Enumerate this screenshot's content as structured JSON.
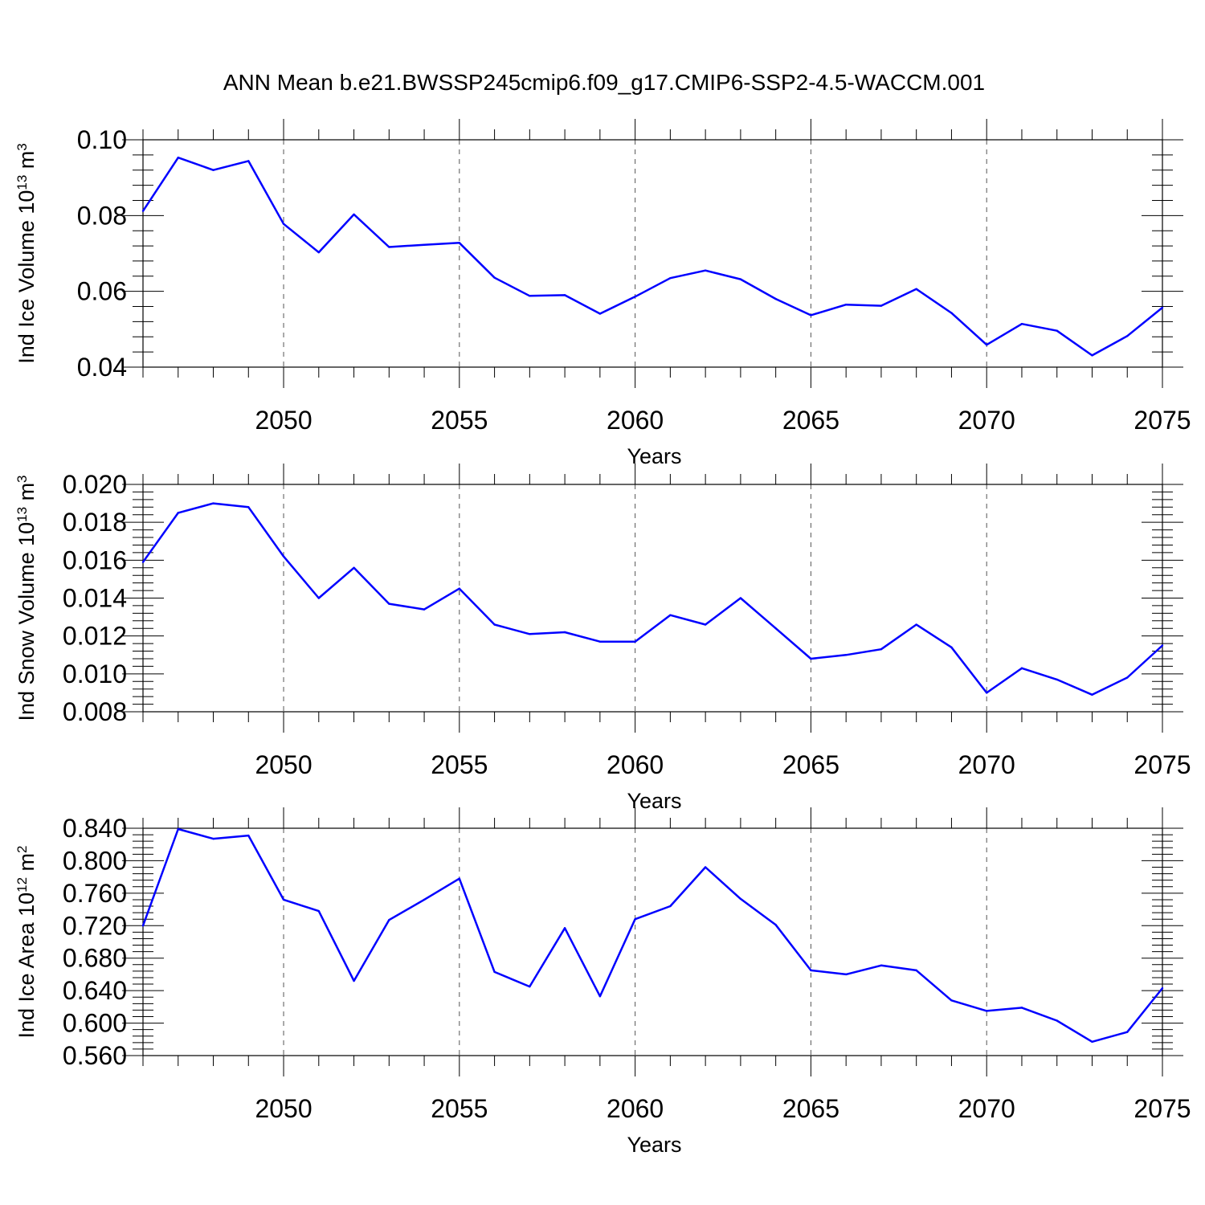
{
  "title": "ANN Mean b.e21.BWSSP245cmip6.f09_g17.CMIP6-SSP2-4.5-WACCM.001",
  "colors": {
    "line": "#0000ff",
    "axis": "#000000",
    "grid": "#555555"
  },
  "chart_data": [
    {
      "type": "line",
      "name": "ice-volume",
      "ylabel": {
        "main": "Ind Ice Volume 10",
        "exp": "13",
        "unit": " m",
        "unit_exp": "3"
      },
      "xlabel": "Years",
      "xlim": [
        2046,
        2075
      ],
      "ylim": [
        0.04,
        0.1
      ],
      "yticks": [
        "0.04",
        "0.06",
        "0.08",
        "0.10"
      ],
      "xticks": [
        "2050",
        "2055",
        "2060",
        "2065",
        "2070",
        "2075"
      ],
      "x": [
        2046,
        2047,
        2048,
        2049,
        2050,
        2051,
        2052,
        2053,
        2054,
        2055,
        2056,
        2057,
        2058,
        2059,
        2060,
        2061,
        2062,
        2063,
        2064,
        2065,
        2066,
        2067,
        2068,
        2069,
        2070,
        2071,
        2072,
        2073,
        2074,
        2075
      ],
      "values": [
        0.0812,
        0.0953,
        0.092,
        0.0944,
        0.0778,
        0.0703,
        0.0803,
        0.0717,
        0.0723,
        0.0728,
        0.0636,
        0.0588,
        0.059,
        0.0541,
        0.0586,
        0.0635,
        0.0655,
        0.0632,
        0.058,
        0.0537,
        0.0565,
        0.0562,
        0.0606,
        0.0543,
        0.0459,
        0.0514,
        0.0496,
        0.0431,
        0.0482,
        0.0557
      ]
    },
    {
      "type": "line",
      "name": "snow-volume",
      "ylabel": {
        "main": "Ind Snow Volume 10",
        "exp": "13",
        "unit": " m",
        "unit_exp": "3"
      },
      "xlabel": "Years",
      "xlim": [
        2046,
        2075
      ],
      "ylim": [
        0.008,
        0.02
      ],
      "yticks": [
        "0.008",
        "0.010",
        "0.012",
        "0.014",
        "0.016",
        "0.018",
        "0.020"
      ],
      "xticks": [
        "2050",
        "2055",
        "2060",
        "2065",
        "2070",
        "2075"
      ],
      "x": [
        2046,
        2047,
        2048,
        2049,
        2050,
        2051,
        2052,
        2053,
        2054,
        2055,
        2056,
        2057,
        2058,
        2059,
        2060,
        2061,
        2062,
        2063,
        2064,
        2065,
        2066,
        2067,
        2068,
        2069,
        2070,
        2071,
        2072,
        2073,
        2074,
        2075
      ],
      "values": [
        0.0159,
        0.0185,
        0.019,
        0.0188,
        0.0162,
        0.014,
        0.0156,
        0.0137,
        0.0134,
        0.0145,
        0.0126,
        0.0121,
        0.0122,
        0.0117,
        0.0117,
        0.0131,
        0.0126,
        0.014,
        0.0124,
        0.0108,
        0.011,
        0.0113,
        0.0126,
        0.0114,
        0.009,
        0.0103,
        0.0097,
        0.0089,
        0.0098,
        0.0115
      ]
    },
    {
      "type": "line",
      "name": "ice-area",
      "ylabel": {
        "main": "Ind Ice Area 10",
        "exp": "12",
        "unit": " m",
        "unit_exp": "2"
      },
      "xlabel": "Years",
      "xlim": [
        2046,
        2075
      ],
      "ylim": [
        0.56,
        0.84
      ],
      "yticks": [
        "0.560",
        "0.600",
        "0.640",
        "0.680",
        "0.720",
        "0.760",
        "0.800",
        "0.840"
      ],
      "xticks": [
        "2050",
        "2055",
        "2060",
        "2065",
        "2070",
        "2075"
      ],
      "x": [
        2046,
        2047,
        2048,
        2049,
        2050,
        2051,
        2052,
        2053,
        2054,
        2055,
        2056,
        2057,
        2058,
        2059,
        2060,
        2061,
        2062,
        2063,
        2064,
        2065,
        2066,
        2067,
        2068,
        2069,
        2070,
        2071,
        2072,
        2073,
        2074,
        2075
      ],
      "values": [
        0.72,
        0.839,
        0.827,
        0.831,
        0.752,
        0.738,
        0.652,
        0.727,
        0.752,
        0.778,
        0.663,
        0.645,
        0.717,
        0.633,
        0.728,
        0.744,
        0.792,
        0.753,
        0.721,
        0.665,
        0.66,
        0.671,
        0.665,
        0.628,
        0.615,
        0.619,
        0.603,
        0.577,
        0.589,
        0.643
      ]
    }
  ]
}
